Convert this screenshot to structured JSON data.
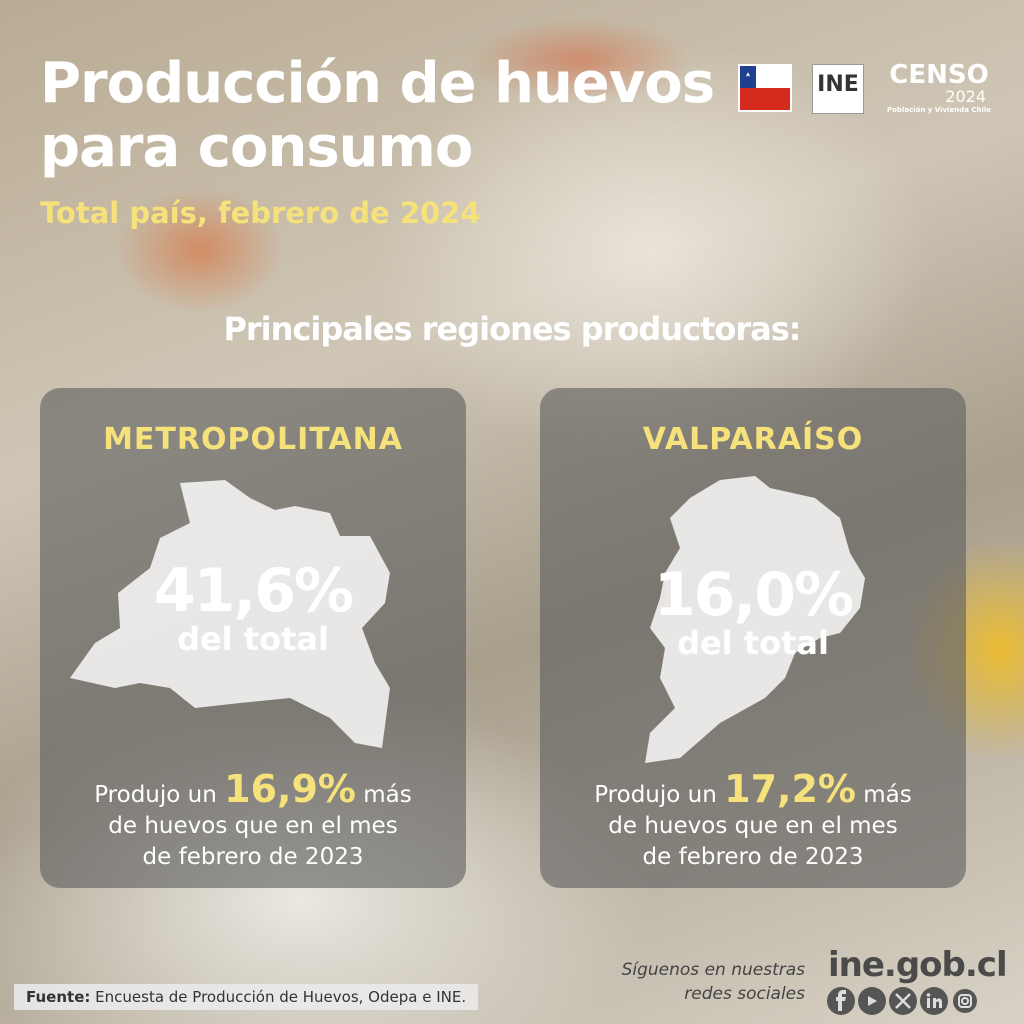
{
  "header": {
    "title_lines": [
      "Producción de huevos",
      "para consumo"
    ],
    "subtitle": "Total país, febrero de 2024"
  },
  "logos": {
    "ine": "INE",
    "censo": "CENSO",
    "censo_year": "2024",
    "censo_caption": "Población y Vivienda Chile"
  },
  "section_title": "Principales regiones productoras:",
  "cards": [
    {
      "region": "METROPOLITANA",
      "share": "41,6%",
      "share_caption": "del total",
      "line1_before": "Produjo un",
      "growth": "16,9%",
      "line1_after": "más",
      "line2": "de huevos que en el mes",
      "line3": "de febrero de 2023"
    },
    {
      "region": "VALPARAÍSO",
      "share": "16,0%",
      "share_caption": "del total",
      "line1_before": "Produjo un",
      "growth": "17,2%",
      "line1_after": "más",
      "line2": "de huevos que en el mes",
      "line3": "de febrero de 2023"
    }
  ],
  "footer": {
    "source_label": "Fuente:",
    "source_text": "Encuesta de Producción de Huevos, Odepa e INE."
  },
  "social": {
    "follow_lines": [
      "Síguenos en nuestras",
      "redes sociales"
    ],
    "website": "ine.gob.cl"
  }
}
